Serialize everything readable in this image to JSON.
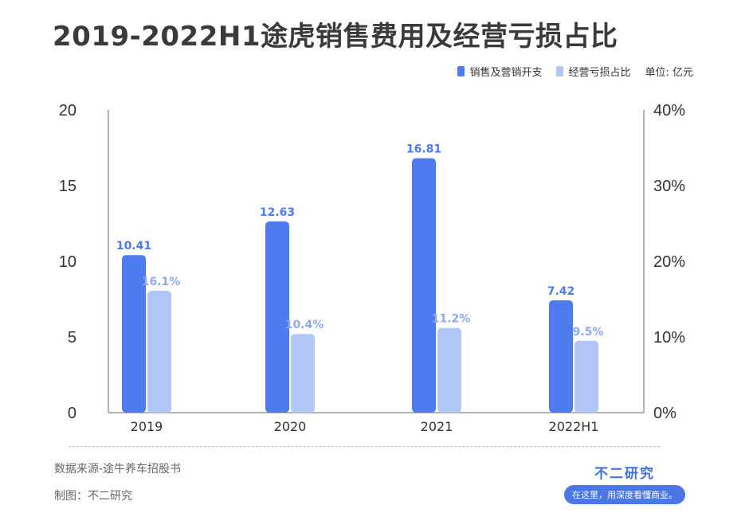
{
  "title": "2019-2022H1途虎销售费用及经营亏损占比",
  "legend": {
    "series1": "销售及营销开支",
    "series2": "经营亏损占比",
    "unit": "单位: 亿元"
  },
  "footer": {
    "source": "数据来源-途牛养车招股书",
    "made_by": "制图：不二研究"
  },
  "brand": {
    "name": "不二研究",
    "slogan": "在这里，用深度看懂商业。"
  },
  "colors": {
    "series1": "#4f7bf0",
    "series2": "#b3c7f7",
    "label1": "#4f7bf0",
    "label2": "#8fa9ea",
    "axis": "#999999"
  },
  "chart_data": {
    "type": "bar",
    "categories": [
      "2019",
      "2020",
      "2021",
      "2022H1"
    ],
    "series": [
      {
        "name": "销售及营销开支",
        "values": [
          10.41,
          12.63,
          16.81,
          7.42
        ],
        "labels": [
          "10.41",
          "12.63",
          "16.81",
          "7.42"
        ],
        "axis": "left"
      },
      {
        "name": "经营亏损占比",
        "values": [
          16.1,
          10.4,
          11.2,
          9.5
        ],
        "labels": [
          "16.1%",
          "10.4%",
          "11.2%",
          "9.5%"
        ],
        "axis": "right"
      }
    ],
    "y_left": {
      "min": 0,
      "max": 20,
      "ticks": [
        "0",
        "5",
        "10",
        "15",
        "20"
      ]
    },
    "y_right": {
      "min": 0,
      "max": 40,
      "ticks": [
        "0%",
        "10%",
        "20%",
        "30%",
        "40%"
      ]
    },
    "legend_position": "top-right",
    "grid": false
  }
}
